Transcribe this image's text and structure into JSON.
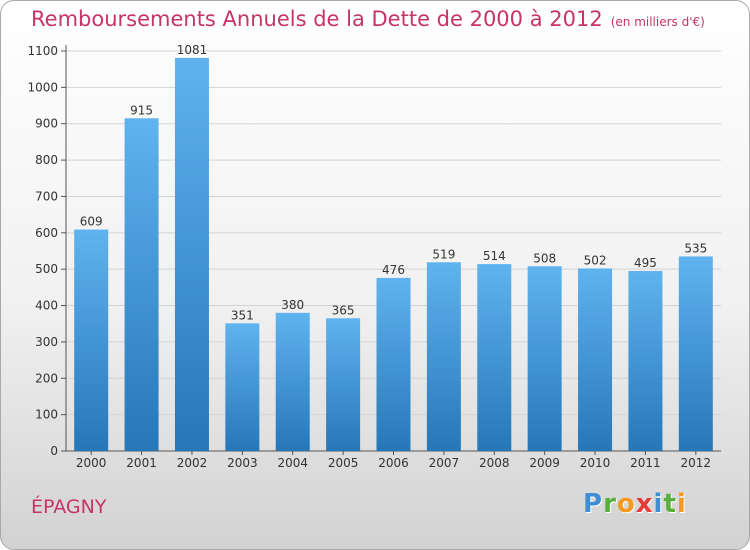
{
  "header": {
    "title": "Remboursements Annuels de la Dette de 2000 à 2012",
    "subtitle": "(en milliers d'€)"
  },
  "footer": {
    "commune": "ÉPAGNY",
    "logo_letters": [
      {
        "ch": "P",
        "color": "#3f8ed4"
      },
      {
        "ch": "r",
        "color": "#58b03c"
      },
      {
        "ch": "o",
        "color": "#f39a1f"
      },
      {
        "ch": "x",
        "color": "#e53b3b"
      },
      {
        "ch": "i",
        "color": "#3f8ed4"
      },
      {
        "ch": "t",
        "color": "#58b03c"
      },
      {
        "ch": "i",
        "color": "#f39a1f"
      }
    ]
  },
  "chart_data": {
    "type": "bar",
    "title": "Remboursements Annuels de la Dette de 2000 à 2012",
    "subtitle": "(en milliers d'€)",
    "categories": [
      "2000",
      "2001",
      "2002",
      "2003",
      "2004",
      "2005",
      "2006",
      "2007",
      "2008",
      "2009",
      "2010",
      "2011",
      "2012"
    ],
    "values": [
      609,
      915,
      1081,
      351,
      380,
      365,
      476,
      519,
      514,
      508,
      502,
      495,
      535
    ],
    "data_labels": [
      "609",
      "915",
      "1081",
      "351",
      "380",
      "365",
      "476",
      "519",
      "514",
      "508",
      "502",
      "495",
      "535"
    ],
    "ylim": [
      0,
      1100
    ],
    "yticks": [
      0,
      100,
      200,
      300,
      400,
      500,
      600,
      700,
      800,
      900,
      1000,
      1100
    ],
    "grid": true,
    "bar_color": "#3a94d8"
  }
}
